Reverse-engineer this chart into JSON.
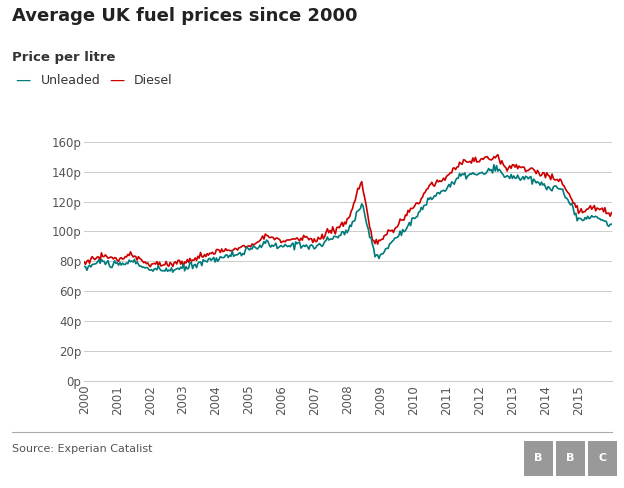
{
  "title": "Average UK fuel prices since 2000",
  "subtitle": "Price per litre",
  "source": "Source: Experian Catalist",
  "unleaded_color": "#007a7a",
  "diesel_color": "#cc0000",
  "background_color": "#ffffff",
  "grid_color": "#cccccc",
  "yticks": [
    0,
    20,
    40,
    60,
    80,
    100,
    120,
    140,
    160
  ],
  "ytick_labels": [
    "0p",
    "20p",
    "40p",
    "60p",
    "80p",
    "100p",
    "120p",
    "140p",
    "160p"
  ],
  "ylim": [
    0,
    170
  ],
  "title_fontsize": 13,
  "subtitle_fontsize": 9.5,
  "tick_fontsize": 8.5,
  "legend_fontsize": 9,
  "source_fontsize": 8,
  "line_width": 1.2,
  "unleaded_waypoints_x": [
    2000.0,
    2000.5,
    2001.0,
    2001.5,
    2002.0,
    2002.5,
    2003.0,
    2003.5,
    2004.0,
    2004.5,
    2005.0,
    2005.5,
    2006.0,
    2006.5,
    2007.0,
    2007.5,
    2008.0,
    2008.42,
    2008.83,
    2009.0,
    2009.5,
    2010.0,
    2010.5,
    2011.0,
    2011.5,
    2012.0,
    2012.5,
    2012.83,
    2013.0,
    2013.5,
    2014.0,
    2014.5,
    2015.0,
    2015.5,
    2015.9
  ],
  "unleaded_waypoints_y": [
    75,
    80,
    77,
    80,
    74,
    74,
    75,
    79,
    82,
    84,
    87,
    92,
    89,
    92,
    89,
    95,
    100,
    119,
    83,
    84,
    97,
    108,
    122,
    129,
    138,
    138,
    142,
    136,
    137,
    135,
    130,
    128,
    108,
    110,
    105
  ],
  "diesel_waypoints_x": [
    2000.0,
    2000.5,
    2001.0,
    2001.5,
    2002.0,
    2002.5,
    2003.0,
    2003.5,
    2004.0,
    2004.5,
    2005.0,
    2005.5,
    2006.0,
    2006.5,
    2007.0,
    2007.5,
    2008.0,
    2008.42,
    2008.75,
    2009.0,
    2009.5,
    2010.0,
    2010.5,
    2011.0,
    2011.5,
    2012.0,
    2012.5,
    2012.83,
    2013.0,
    2013.5,
    2014.0,
    2014.5,
    2015.0,
    2015.5,
    2015.9
  ],
  "diesel_waypoints_y": [
    79,
    84,
    81,
    84,
    78,
    78,
    79,
    83,
    86,
    88,
    91,
    97,
    93,
    96,
    94,
    100,
    107,
    133,
    92,
    94,
    104,
    116,
    131,
    137,
    147,
    147,
    151,
    142,
    144,
    142,
    137,
    134,
    113,
    117,
    112
  ]
}
